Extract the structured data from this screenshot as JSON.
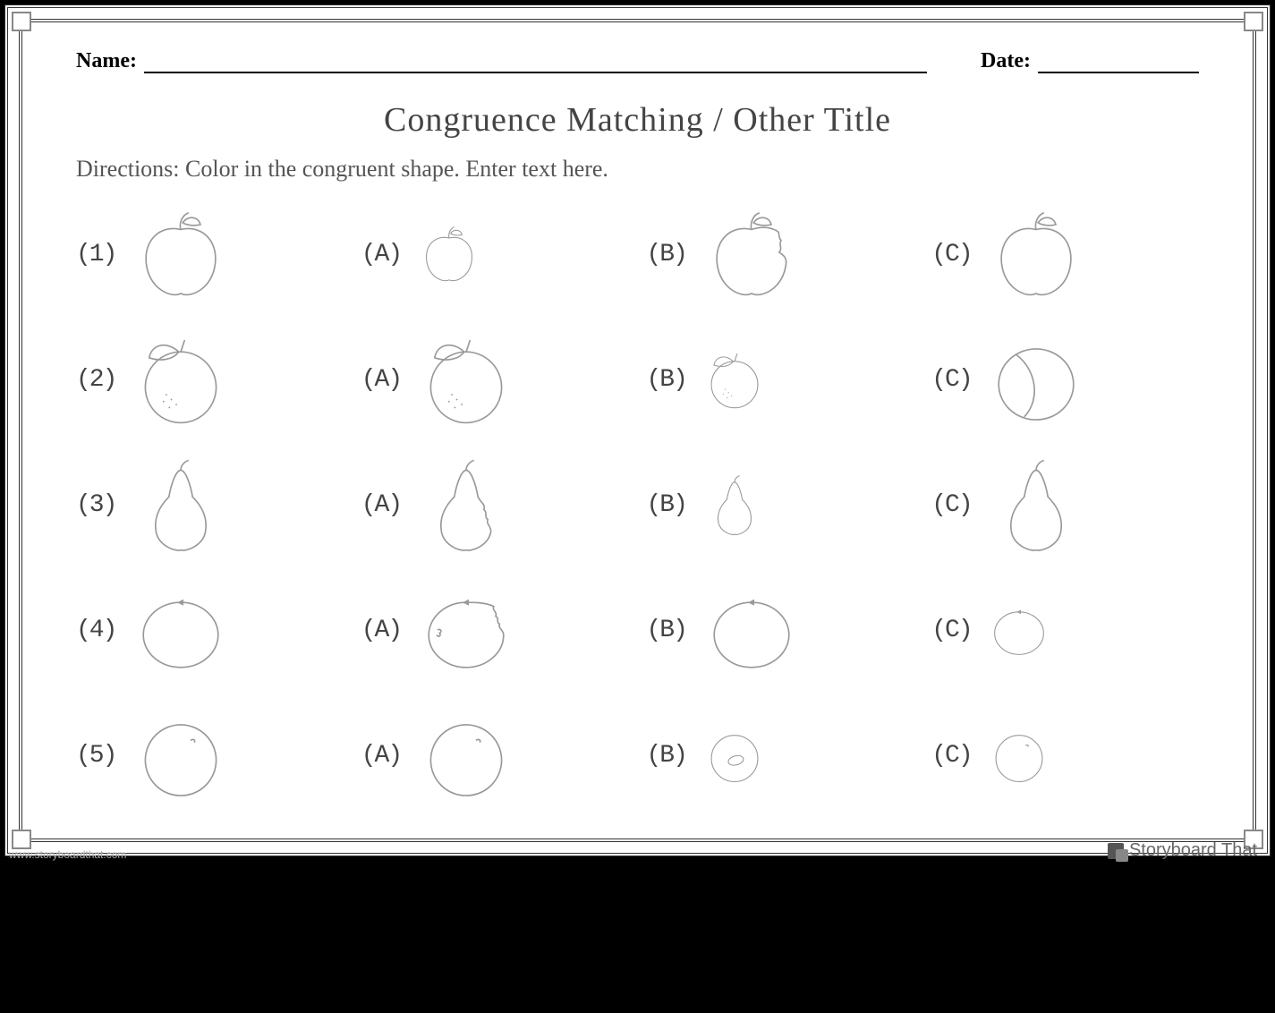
{
  "header": {
    "name_label": "Name:",
    "date_label": "Date:"
  },
  "title": "Congruence Matching / Other Title",
  "directions": "Directions: Color in the congruent shape. Enter text here.",
  "option_labels": [
    "(A)",
    "(B)",
    "(C)"
  ],
  "rows": [
    {
      "num": "(1)",
      "shape": "apple",
      "prompt_size": "lg",
      "options": [
        {
          "shape": "apple",
          "size": "sm"
        },
        {
          "shape": "apple-bite",
          "size": "lg"
        },
        {
          "shape": "apple",
          "size": "lg"
        }
      ]
    },
    {
      "num": "(2)",
      "shape": "orange-leaf",
      "prompt_size": "lg",
      "options": [
        {
          "shape": "orange-leaf",
          "size": "lg"
        },
        {
          "shape": "orange-leaf",
          "size": "sm"
        },
        {
          "shape": "orange-slice",
          "size": "lg"
        }
      ]
    },
    {
      "num": "(3)",
      "shape": "pear",
      "prompt_size": "lg",
      "options": [
        {
          "shape": "pear-bite",
          "size": "lg"
        },
        {
          "shape": "pear",
          "size": "sm"
        },
        {
          "shape": "pear",
          "size": "lg"
        }
      ]
    },
    {
      "num": "(4)",
      "shape": "tangerine",
      "prompt_size": "lg",
      "options": [
        {
          "shape": "tangerine-bite",
          "size": "lg"
        },
        {
          "shape": "tangerine",
          "size": "lg"
        },
        {
          "shape": "tangerine",
          "size": "sm"
        }
      ]
    },
    {
      "num": "(5)",
      "shape": "plum",
      "prompt_size": "lg",
      "options": [
        {
          "shape": "plum",
          "size": "lg"
        },
        {
          "shape": "plum-seed",
          "size": "sm"
        },
        {
          "shape": "plum",
          "size": "sm"
        }
      ]
    }
  ],
  "watermark": {
    "url": "www.storyboardthat.com",
    "brand": "Storyboard That"
  },
  "colors": {
    "stroke": "#999999",
    "text": "#444444",
    "border": "#333333",
    "bg": "#ffffff",
    "page_bg": "#000000"
  }
}
